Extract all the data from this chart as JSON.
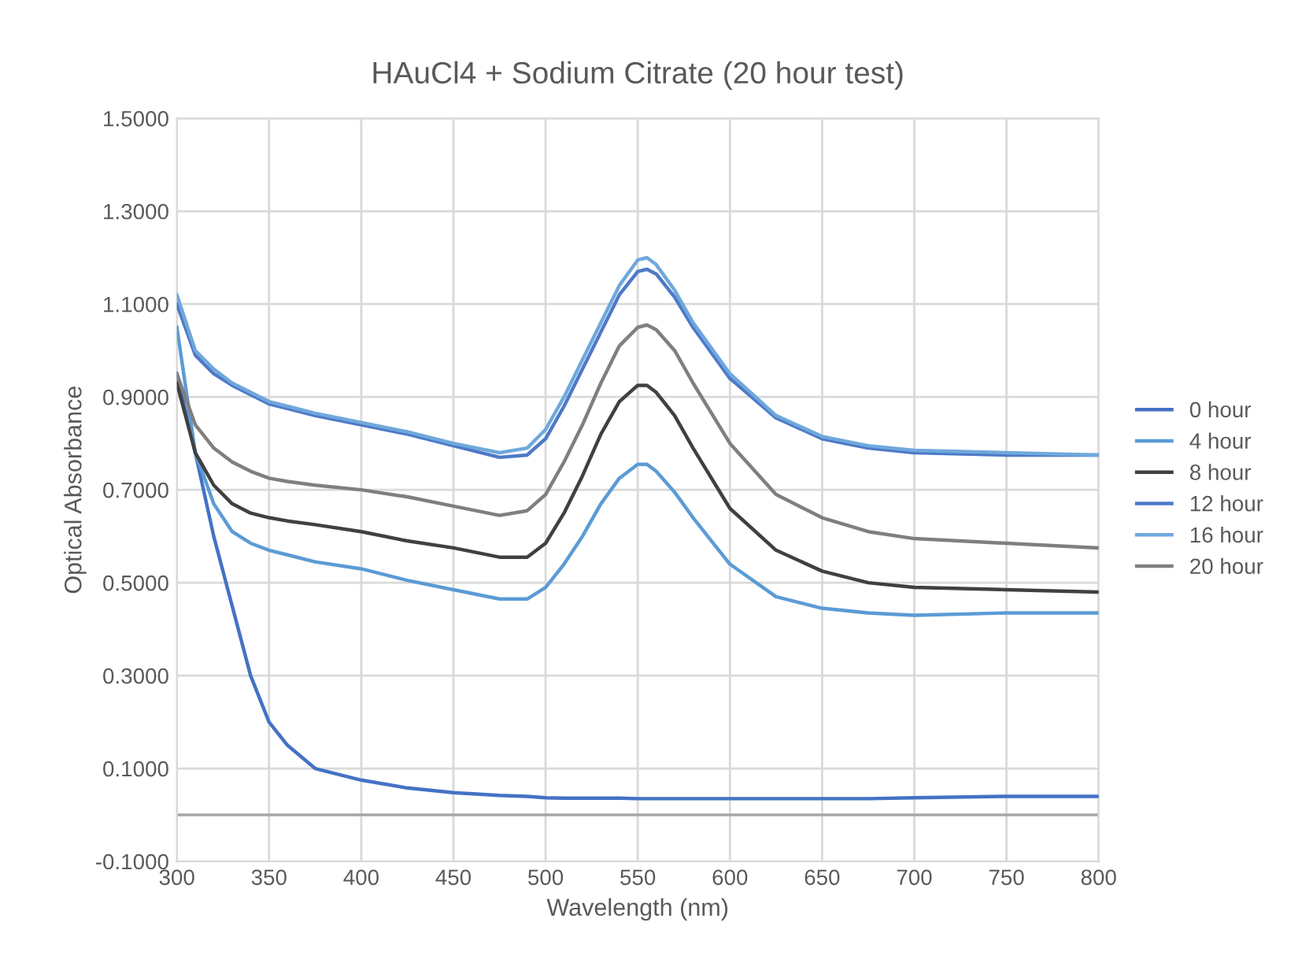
{
  "chart_data": {
    "type": "line",
    "title": "HAuCl4 + Sodium Citrate (20 hour test)",
    "xlabel": "Wavelength (nm)",
    "ylabel": "Optical Absorbance",
    "x": [
      300,
      310,
      320,
      330,
      340,
      350,
      360,
      375,
      400,
      425,
      450,
      475,
      490,
      500,
      510,
      520,
      530,
      540,
      550,
      555,
      560,
      570,
      580,
      600,
      625,
      650,
      675,
      700,
      750,
      800
    ],
    "series": [
      {
        "name": "0 hour",
        "color": "#4472c4",
        "values": [
          0.95,
          0.78,
          0.6,
          0.45,
          0.3,
          0.2,
          0.15,
          0.1,
          0.075,
          0.058,
          0.048,
          0.042,
          0.04,
          0.037,
          0.036,
          0.036,
          0.036,
          0.036,
          0.035,
          0.035,
          0.035,
          0.035,
          0.035,
          0.035,
          0.035,
          0.035,
          0.035,
          0.037,
          0.04,
          0.04
        ]
      },
      {
        "name": "4 hour",
        "color": "#5b9bd5",
        "values": [
          1.05,
          0.78,
          0.67,
          0.61,
          0.585,
          0.57,
          0.56,
          0.545,
          0.53,
          0.505,
          0.485,
          0.465,
          0.465,
          0.49,
          0.54,
          0.6,
          0.67,
          0.725,
          0.755,
          0.755,
          0.74,
          0.695,
          0.64,
          0.54,
          0.47,
          0.445,
          0.435,
          0.43,
          0.435,
          0.435
        ]
      },
      {
        "name": "8 hour",
        "color": "#404040",
        "values": [
          0.93,
          0.78,
          0.71,
          0.67,
          0.65,
          0.64,
          0.633,
          0.625,
          0.61,
          0.59,
          0.575,
          0.555,
          0.555,
          0.585,
          0.65,
          0.73,
          0.82,
          0.89,
          0.925,
          0.925,
          0.91,
          0.86,
          0.79,
          0.66,
          0.57,
          0.525,
          0.5,
          0.49,
          0.485,
          0.48
        ]
      },
      {
        "name": "12 hour",
        "color": "#4e79c8",
        "values": [
          1.1,
          0.99,
          0.95,
          0.925,
          0.905,
          0.885,
          0.875,
          0.86,
          0.84,
          0.82,
          0.795,
          0.77,
          0.775,
          0.81,
          0.88,
          0.96,
          1.04,
          1.12,
          1.17,
          1.175,
          1.165,
          1.115,
          1.05,
          0.94,
          0.855,
          0.81,
          0.79,
          0.78,
          0.775,
          0.775
        ]
      },
      {
        "name": "16 hour",
        "color": "#6fa8dc",
        "values": [
          1.12,
          1.0,
          0.96,
          0.93,
          0.91,
          0.89,
          0.88,
          0.865,
          0.845,
          0.825,
          0.8,
          0.78,
          0.79,
          0.83,
          0.9,
          0.98,
          1.06,
          1.14,
          1.195,
          1.2,
          1.185,
          1.13,
          1.06,
          0.95,
          0.86,
          0.815,
          0.795,
          0.785,
          0.78,
          0.775
        ]
      },
      {
        "name": "20 hour",
        "color": "#7f7f7f",
        "values": [
          0.95,
          0.84,
          0.79,
          0.76,
          0.74,
          0.725,
          0.718,
          0.71,
          0.7,
          0.685,
          0.665,
          0.645,
          0.655,
          0.69,
          0.76,
          0.84,
          0.93,
          1.01,
          1.05,
          1.055,
          1.045,
          1.0,
          0.93,
          0.8,
          0.69,
          0.64,
          0.61,
          0.595,
          0.585,
          0.575
        ]
      }
    ],
    "xlim": [
      300,
      800
    ],
    "xticks": [
      300,
      350,
      400,
      450,
      500,
      550,
      600,
      650,
      700,
      750,
      800
    ],
    "ylim": [
      -0.1,
      1.5
    ],
    "yticks": [
      {
        "value": -0.1,
        "label": "-0.1000"
      },
      {
        "value": 0.1,
        "label": "0.1000"
      },
      {
        "value": 0.3,
        "label": "0.3000"
      },
      {
        "value": 0.5,
        "label": "0.5000"
      },
      {
        "value": 0.7,
        "label": "0.7000"
      },
      {
        "value": 0.9,
        "label": "0.9000"
      },
      {
        "value": 1.1,
        "label": "1.1000"
      },
      {
        "value": 1.3,
        "label": "1.3000"
      },
      {
        "value": 1.5,
        "label": "1.5000"
      }
    ],
    "ref_lines": [
      {
        "axis": "y",
        "value": 0,
        "color": "#a6a6a6"
      }
    ],
    "grid": true,
    "legend": "right",
    "marker": "none",
    "line_style": "solid"
  }
}
